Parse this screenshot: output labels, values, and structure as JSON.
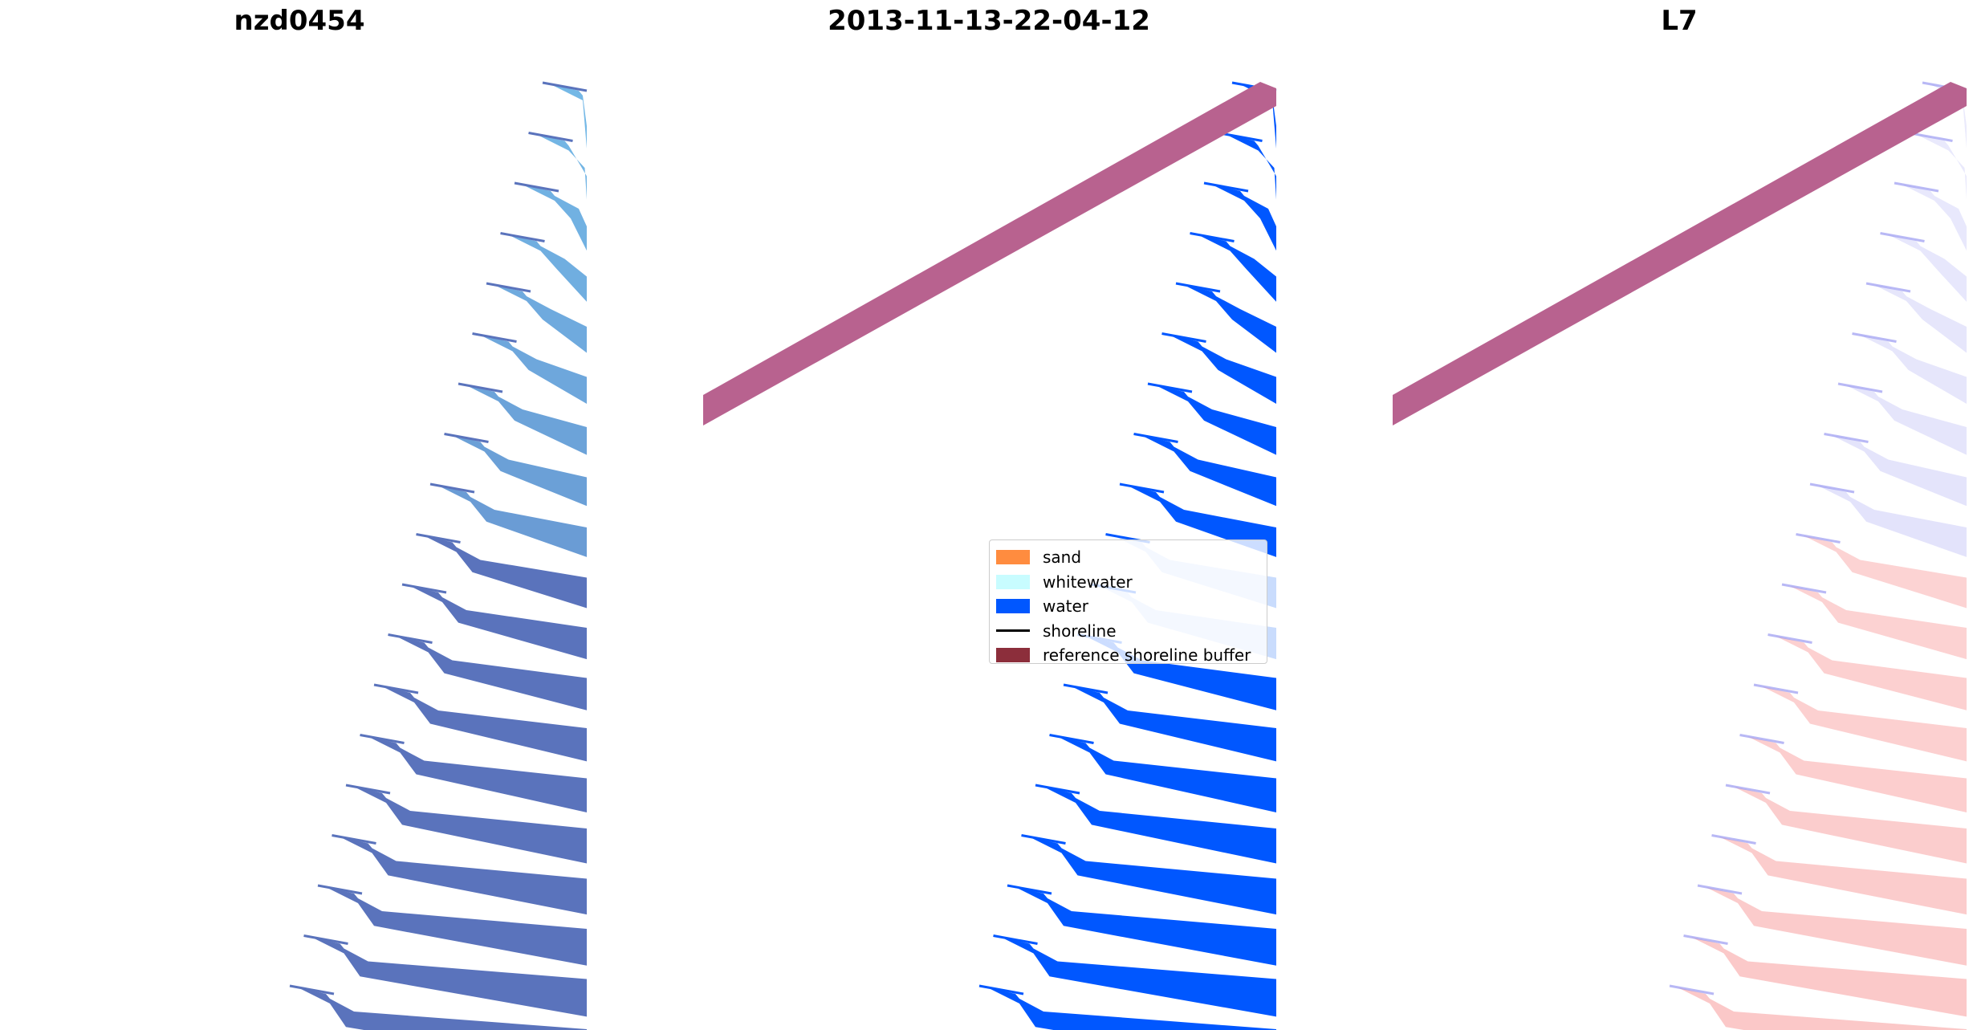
{
  "panels": [
    {
      "title": "nzd0454"
    },
    {
      "title": "2013-11-13-22-04-12"
    },
    {
      "title": "L7"
    }
  ],
  "legend": {
    "items": [
      {
        "label": "sand",
        "color": "#ff8c3f",
        "kind": "patch"
      },
      {
        "label": "whitewater",
        "color": "#c8fcff",
        "kind": "patch"
      },
      {
        "label": "water",
        "color": "#0057ff",
        "kind": "patch"
      },
      {
        "label": "shoreline",
        "color": "#000000",
        "kind": "line"
      },
      {
        "label": "reference shoreline buffer",
        "color": "#8c2e3b",
        "kind": "patch"
      }
    ]
  },
  "colors": {
    "rgb_water_light": "#74b8e6",
    "rgb_water_dark": "#5a73bc",
    "classified_water": "#0057ff",
    "buffer": "#b8628f",
    "mndwi_red": "#f24848",
    "mndwi_blue": "#8888ee"
  }
}
